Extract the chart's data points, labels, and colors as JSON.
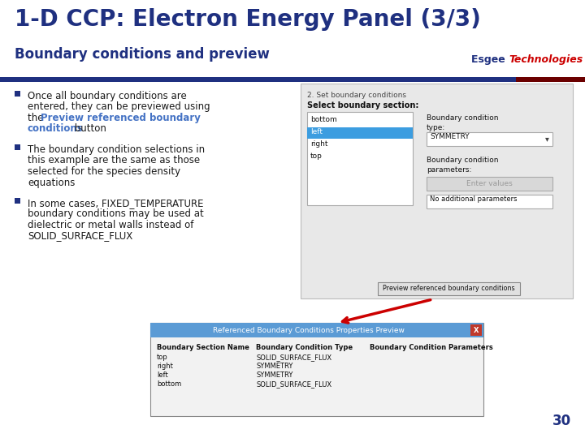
{
  "title": "1-D CCP: Electron Energy Panel (3/3)",
  "subtitle": "Boundary conditions and preview",
  "title_color": "#1f3080",
  "subtitle_color": "#1f3080",
  "esgee_color": "#1f3080",
  "tech_color": "#cc0000",
  "bar_color": "#1f3080",
  "bar_color2": "#8b0000",
  "bullet_color": "#1f3080",
  "bullet1_bold_color": "#4472c4",
  "page_number": "30",
  "bg_color": "#ffffff",
  "panel_rows": [
    "top",
    "right",
    "left",
    "bottom"
  ],
  "panel_types": [
    "SOLID_SURFACE_FLUX",
    "SYMMETRY",
    "SYMMETRY",
    "SOLID_SURFACE_FLUX"
  ]
}
